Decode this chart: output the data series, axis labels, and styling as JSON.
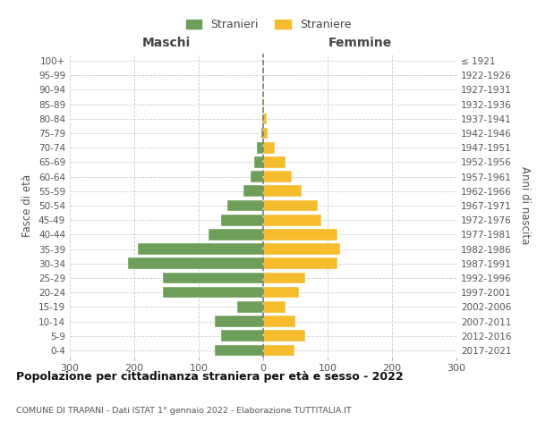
{
  "age_groups": [
    "0-4",
    "5-9",
    "10-14",
    "15-19",
    "20-24",
    "25-29",
    "30-34",
    "35-39",
    "40-44",
    "45-49",
    "50-54",
    "55-59",
    "60-64",
    "65-69",
    "70-74",
    "75-79",
    "80-84",
    "85-89",
    "90-94",
    "95-99",
    "100+"
  ],
  "birth_years": [
    "2017-2021",
    "2012-2016",
    "2007-2011",
    "2002-2006",
    "1997-2001",
    "1992-1996",
    "1987-1991",
    "1982-1986",
    "1977-1981",
    "1972-1976",
    "1967-1971",
    "1962-1966",
    "1957-1961",
    "1952-1956",
    "1947-1951",
    "1942-1946",
    "1937-1941",
    "1932-1936",
    "1927-1931",
    "1922-1926",
    "≤ 1921"
  ],
  "maschi": [
    75,
    65,
    75,
    40,
    155,
    155,
    210,
    195,
    85,
    65,
    55,
    30,
    20,
    14,
    10,
    3,
    2,
    0,
    0,
    0,
    0
  ],
  "femmine": [
    48,
    65,
    50,
    35,
    55,
    65,
    115,
    120,
    115,
    90,
    85,
    60,
    45,
    35,
    18,
    7,
    5,
    2,
    0,
    0,
    0
  ],
  "male_color": "#6d9e5a",
  "female_color": "#f5bc2e",
  "grid_color": "#cccccc",
  "dashed_line_color": "#808060",
  "title": "Popolazione per cittadinanza straniera per età e sesso - 2022",
  "subtitle": "COMUNE DI TRAPANI - Dati ISTAT 1° gennaio 2022 - Elaborazione TUTTITALIA.IT",
  "ylabel_left": "Fasce di età",
  "ylabel_right": "Anni di nascita",
  "xlabel_left": "Maschi",
  "xlabel_right": "Femmine",
  "legend_maschi": "Stranieri",
  "legend_femmine": "Straniere",
  "xlim": 300,
  "background_color": "#ffffff"
}
